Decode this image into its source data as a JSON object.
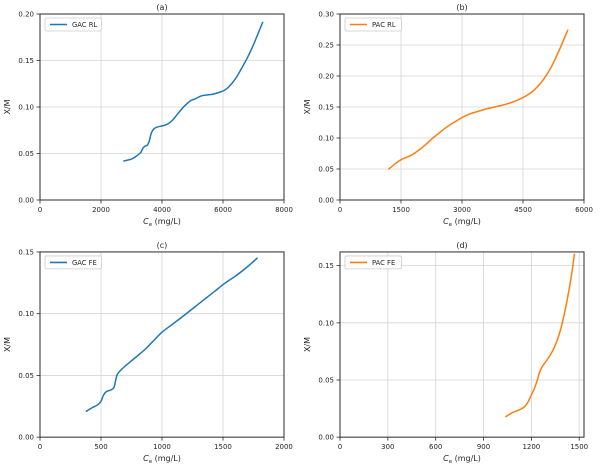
{
  "figure": {
    "background": "#ffffff",
    "grid_color": "#d4d4d4",
    "spine_color": "#2b2b2b",
    "text_color": "#262626",
    "legend_border": "#cccccc"
  },
  "chart_data": [
    {
      "type": "line",
      "title": "(a)",
      "legend": "GAC RL",
      "legend_position": "upper-left",
      "color": "#1f77b4",
      "grid": true,
      "xlabel": {
        "italic_symbol": "C",
        "subscript": "e",
        "units": " (mg/L)"
      },
      "ylabel": "X/M",
      "xlim": [
        0,
        8000
      ],
      "ylim": [
        0,
        0.2
      ],
      "xticks": [
        0,
        2000,
        4000,
        6000,
        8000
      ],
      "xticklabels": [
        "0",
        "2000",
        "4000",
        "6000",
        "8000"
      ],
      "yticks": [
        0.0,
        0.05,
        0.1,
        0.15,
        0.2
      ],
      "yticklabels": [
        "0.00",
        "0.05",
        "0.10",
        "0.15",
        "0.20"
      ],
      "series": [
        {
          "name": "GAC RL",
          "x": [
            2750,
            3000,
            3150,
            3300,
            3380,
            3450,
            3520,
            3580,
            3650,
            3750,
            3900,
            4050,
            4200,
            4350,
            4500,
            4650,
            4800,
            4950,
            5100,
            5300,
            5500,
            5700,
            5900,
            6050,
            6200,
            6400,
            6600,
            6800,
            7000,
            7150,
            7300
          ],
          "y": [
            0.042,
            0.044,
            0.047,
            0.051,
            0.056,
            0.058,
            0.059,
            0.063,
            0.072,
            0.077,
            0.079,
            0.08,
            0.082,
            0.086,
            0.092,
            0.098,
            0.103,
            0.107,
            0.109,
            0.112,
            0.113,
            0.114,
            0.116,
            0.118,
            0.122,
            0.13,
            0.141,
            0.153,
            0.167,
            0.179,
            0.191
          ]
        }
      ]
    },
    {
      "type": "line",
      "title": "(b)",
      "legend": "PAC RL",
      "legend_position": "upper-left",
      "color": "#ff7f0e",
      "grid": true,
      "xlabel": {
        "italic_symbol": "C",
        "subscript": "e",
        "units": " (mg/L)"
      },
      "ylabel": "X/M",
      "xlim": [
        0,
        6000
      ],
      "ylim": [
        0,
        0.3
      ],
      "xticks": [
        0,
        1500,
        3000,
        4500,
        6000
      ],
      "xticklabels": [
        "0",
        "1500",
        "3000",
        "4500",
        "6000"
      ],
      "yticks": [
        0.0,
        0.05,
        0.1,
        0.15,
        0.2,
        0.25,
        0.3
      ],
      "yticklabels": [
        "0.00",
        "0.05",
        "0.10",
        "0.15",
        "0.20",
        "0.25",
        "0.30"
      ],
      "series": [
        {
          "name": "PAC RL",
          "x": [
            1200,
            1350,
            1500,
            1650,
            1800,
            1950,
            2100,
            2250,
            2400,
            2550,
            2700,
            2850,
            3000,
            3200,
            3400,
            3600,
            3800,
            4000,
            4200,
            4400,
            4600,
            4800,
            5000,
            5200,
            5400,
            5600
          ],
          "y": [
            0.05,
            0.058,
            0.065,
            0.069,
            0.074,
            0.081,
            0.089,
            0.098,
            0.106,
            0.114,
            0.121,
            0.127,
            0.133,
            0.139,
            0.143,
            0.147,
            0.15,
            0.153,
            0.157,
            0.162,
            0.169,
            0.179,
            0.194,
            0.215,
            0.243,
            0.274
          ]
        }
      ]
    },
    {
      "type": "line",
      "title": "(c)",
      "legend": "GAC FE",
      "legend_position": "upper-left",
      "color": "#1f77b4",
      "grid": true,
      "xlabel": {
        "italic_symbol": "C",
        "subscript": "e",
        "units": " (mg/L)"
      },
      "ylabel": "X/M",
      "xlim": [
        0,
        2000
      ],
      "ylim": [
        0,
        0.15
      ],
      "xticks": [
        0,
        500,
        1000,
        1500,
        2000
      ],
      "xticklabels": [
        "0",
        "500",
        "1000",
        "1500",
        "2000"
      ],
      "yticks": [
        0.0,
        0.05,
        0.1,
        0.15
      ],
      "yticklabels": [
        "0.00",
        "0.05",
        "0.10",
        "0.15"
      ],
      "series": [
        {
          "name": "GAC FE",
          "x": [
            380,
            430,
            470,
            500,
            520,
            545,
            575,
            605,
            620,
            635,
            680,
            740,
            800,
            860,
            920,
            1000,
            1080,
            1160,
            1250,
            1340,
            1430,
            1520,
            1610,
            1700,
            1780
          ],
          "y": [
            0.021,
            0.024,
            0.026,
            0.029,
            0.034,
            0.037,
            0.038,
            0.04,
            0.046,
            0.051,
            0.056,
            0.061,
            0.066,
            0.071,
            0.077,
            0.085,
            0.091,
            0.097,
            0.104,
            0.111,
            0.118,
            0.125,
            0.131,
            0.138,
            0.145
          ]
        }
      ]
    },
    {
      "type": "line",
      "title": "(d)",
      "legend": "PAC FE",
      "legend_position": "upper-left",
      "color": "#ff7f0e",
      "grid": true,
      "xlabel": {
        "italic_symbol": "C",
        "subscript": "e",
        "units": " (mg/L)"
      },
      "ylabel": "X/M",
      "xlim": [
        0,
        1530
      ],
      "ylim": [
        0,
        0.162
      ],
      "xticks": [
        0,
        300,
        600,
        900,
        1200,
        1500
      ],
      "xticklabels": [
        "0",
        "300",
        "600",
        "900",
        "1200",
        "1500"
      ],
      "yticks": [
        0.0,
        0.05,
        0.1,
        0.15
      ],
      "yticklabels": [
        "0.00",
        "0.05",
        "0.10",
        "0.15"
      ],
      "series": [
        {
          "name": "PAC FE",
          "x": [
            1040,
            1075,
            1110,
            1140,
            1160,
            1180,
            1200,
            1220,
            1235,
            1250,
            1265,
            1285,
            1310,
            1335,
            1360,
            1385,
            1410,
            1435,
            1455,
            1470
          ],
          "y": [
            0.018,
            0.021,
            0.023,
            0.025,
            0.027,
            0.031,
            0.037,
            0.043,
            0.049,
            0.056,
            0.061,
            0.065,
            0.07,
            0.076,
            0.084,
            0.095,
            0.11,
            0.128,
            0.145,
            0.16
          ]
        }
      ]
    }
  ]
}
